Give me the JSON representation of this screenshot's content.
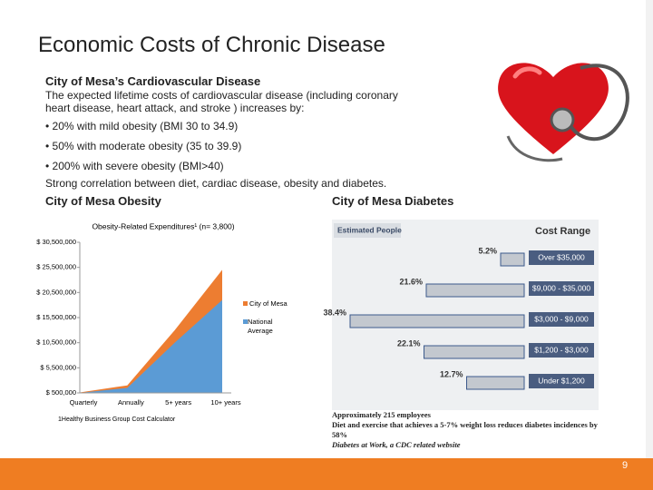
{
  "slide": {
    "title": "Economic Costs of Chronic Disease",
    "subtitle": "City of Mesa’s Cardiovascular Disease",
    "intro": "The expected lifetime costs of cardiovascular disease (including coronary heart disease, heart attack, and stroke ) increases by:",
    "bullets": [
      "20% with mild obesity (BMI 30 to 34.9)",
      "50% with moderate obesity (35 to 39.9)",
      "200% with severe obesity (BMI>40)"
    ],
    "correlation": "Strong correlation between diet, cardiac disease, obesity and diabetes.",
    "obesity_heading": "City of Mesa Obesity",
    "diabetes_heading": "City of Mesa Diabetes",
    "diabetes_notes": [
      "Approximately 215 employees",
      "Diet and exercise that achieves a 5-7% weight loss reduces diabetes incidences by 58%",
      "Diabetes at Work, a CDC related website"
    ],
    "page_number": "9"
  },
  "chart_data": [
    {
      "type": "area",
      "title": "Obesity-Related Expenditures¹ (n= 3,800)",
      "categories": [
        "Quarterly",
        "Annually",
        "5+ years",
        "10+ years"
      ],
      "series": [
        {
          "name": "City of Mesa",
          "color": "#ed7d31",
          "values": [
            600000,
            2000000,
            13000000,
            25000000
          ]
        },
        {
          "name": "National Average",
          "color": "#5b9bd5",
          "values": [
            500000,
            1500000,
            10500000,
            19000000
          ]
        }
      ],
      "ylim": [
        500000,
        30500000
      ],
      "yticks": [
        {
          "value": 500000,
          "label": "$ 500,000"
        },
        {
          "value": 5500000,
          "label": "$ 5,500,000"
        },
        {
          "value": 10500000,
          "label": "$ 10,500,000"
        },
        {
          "value": 15500000,
          "label": "$ 15,500,000"
        },
        {
          "value": 20500000,
          "label": "$ 20,500,000"
        },
        {
          "value": 25500000,
          "label": "$ 25,500,000"
        },
        {
          "value": 30500000,
          "label": "$ 30,500,000"
        }
      ],
      "footnote": "1Healthy Business Group Cost Calculator"
    },
    {
      "type": "bar",
      "column_headers": [
        "Estimated People",
        "Cost Range"
      ],
      "categories": [
        "Over $35,000",
        "$9,000 - $35,000",
        "$3,000 - $9,000",
        "$1,200 - $3,000",
        "Under $1,200"
      ],
      "values": [
        5.2,
        21.6,
        38.4,
        22.1,
        12.7
      ],
      "value_labels": [
        "5.2%",
        "21.6%",
        "38.4%",
        "22.1%",
        "12.7%"
      ],
      "color": "#c3c8cf"
    }
  ]
}
